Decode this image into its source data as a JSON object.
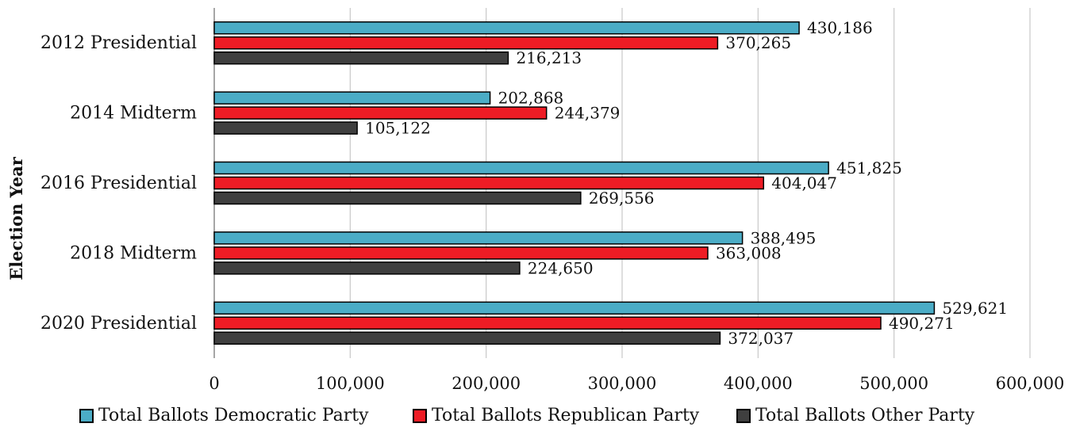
{
  "chart_data": {
    "type": "bar",
    "orientation": "horizontal",
    "ylabel": "Election Year",
    "xlabel": "",
    "xlim": [
      0,
      600000
    ],
    "x_ticks": [
      "0",
      "100,000",
      "200,000",
      "300,000",
      "400,000",
      "500,000",
      "600,000"
    ],
    "grid": "vertical",
    "legend_position": "bottom",
    "categories": [
      "2012 Presidential",
      "2014 Midterm",
      "2016 Presidential",
      "2018 Midterm",
      "2020 Presidential"
    ],
    "series": [
      {
        "name": "Total Ballots Democratic Party",
        "color": "#4bacc6",
        "values": [
          430186,
          202868,
          451825,
          388495,
          529621
        ],
        "labels": [
          "430,186",
          "202,868",
          "451,825",
          "388,495",
          "529,621"
        ]
      },
      {
        "name": "Total Ballots Republican Party",
        "color": "#ee1c25",
        "values": [
          370265,
          244379,
          404047,
          363008,
          490271
        ],
        "labels": [
          "370,265",
          "244,379",
          "404,047",
          "363,008",
          "490,271"
        ]
      },
      {
        "name": "Total Ballots Other Party",
        "color": "#3f3f3f",
        "values": [
          216213,
          105122,
          269556,
          224650,
          372037
        ],
        "labels": [
          "216,213",
          "105,122",
          "269,556",
          "224,650",
          "372,037"
        ]
      }
    ]
  }
}
